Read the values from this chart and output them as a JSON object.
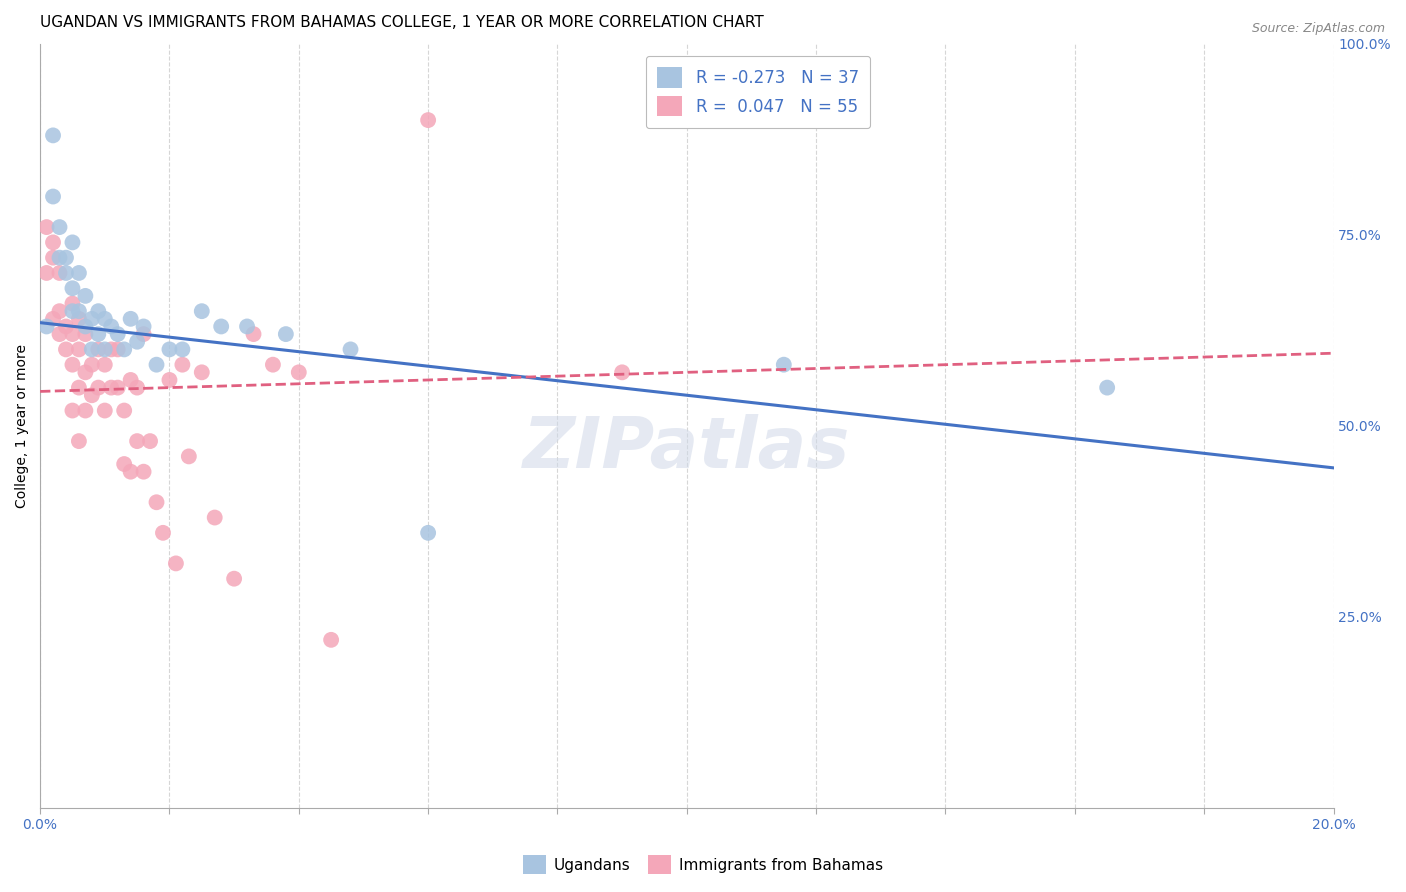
{
  "title": "UGANDAN VS IMMIGRANTS FROM BAHAMAS COLLEGE, 1 YEAR OR MORE CORRELATION CHART",
  "source": "Source: ZipAtlas.com",
  "ylabel": "College, 1 year or more",
  "xlim": [
    0.0,
    0.2
  ],
  "ylim": [
    0.0,
    1.0
  ],
  "xticks": [
    0.0,
    0.02,
    0.04,
    0.06,
    0.08,
    0.1,
    0.12,
    0.14,
    0.16,
    0.18,
    0.2
  ],
  "yticks_right": [
    0.25,
    0.5,
    0.75,
    1.0
  ],
  "ytick_right_labels": [
    "25.0%",
    "50.0%",
    "75.0%",
    "100.0%"
  ],
  "color_ugandan": "#a8c4e0",
  "color_bahamas": "#f4a7b9",
  "trendline_ugandan": "#4472c4",
  "trendline_bahamas": "#e06080",
  "ugandan_x": [
    0.001,
    0.002,
    0.002,
    0.003,
    0.003,
    0.004,
    0.004,
    0.005,
    0.005,
    0.005,
    0.006,
    0.006,
    0.007,
    0.007,
    0.008,
    0.008,
    0.009,
    0.009,
    0.01,
    0.01,
    0.011,
    0.012,
    0.013,
    0.014,
    0.015,
    0.016,
    0.018,
    0.02,
    0.022,
    0.025,
    0.028,
    0.032,
    0.038,
    0.048,
    0.06,
    0.115,
    0.165
  ],
  "ugandan_y": [
    0.63,
    0.88,
    0.8,
    0.76,
    0.72,
    0.72,
    0.7,
    0.74,
    0.68,
    0.65,
    0.7,
    0.65,
    0.63,
    0.67,
    0.64,
    0.6,
    0.65,
    0.62,
    0.64,
    0.6,
    0.63,
    0.62,
    0.6,
    0.64,
    0.61,
    0.63,
    0.58,
    0.6,
    0.6,
    0.65,
    0.63,
    0.63,
    0.62,
    0.6,
    0.36,
    0.58,
    0.55
  ],
  "bahamas_x": [
    0.001,
    0.001,
    0.002,
    0.002,
    0.002,
    0.003,
    0.003,
    0.003,
    0.004,
    0.004,
    0.005,
    0.005,
    0.005,
    0.005,
    0.006,
    0.006,
    0.006,
    0.006,
    0.007,
    0.007,
    0.007,
    0.008,
    0.008,
    0.009,
    0.009,
    0.01,
    0.01,
    0.011,
    0.011,
    0.012,
    0.012,
    0.013,
    0.013,
    0.014,
    0.014,
    0.015,
    0.015,
    0.016,
    0.016,
    0.017,
    0.018,
    0.019,
    0.02,
    0.021,
    0.022,
    0.023,
    0.025,
    0.027,
    0.03,
    0.033,
    0.036,
    0.04,
    0.045,
    0.06,
    0.09
  ],
  "bahamas_y": [
    0.76,
    0.7,
    0.74,
    0.72,
    0.64,
    0.65,
    0.62,
    0.7,
    0.63,
    0.6,
    0.66,
    0.62,
    0.58,
    0.52,
    0.64,
    0.6,
    0.55,
    0.48,
    0.62,
    0.57,
    0.52,
    0.58,
    0.54,
    0.6,
    0.55,
    0.58,
    0.52,
    0.6,
    0.55,
    0.6,
    0.55,
    0.52,
    0.45,
    0.44,
    0.56,
    0.55,
    0.48,
    0.44,
    0.62,
    0.48,
    0.4,
    0.36,
    0.56,
    0.32,
    0.58,
    0.46,
    0.57,
    0.38,
    0.3,
    0.62,
    0.58,
    0.57,
    0.22,
    0.9,
    0.57
  ],
  "watermark": "ZIPatlas",
  "background_color": "#ffffff",
  "grid_color": "#cccccc",
  "title_fontsize": 11,
  "axis_label_fontsize": 10,
  "tick_fontsize": 10,
  "legend_r1": "R = -0.273   N = 37",
  "legend_r2": "R =  0.047   N = 55"
}
